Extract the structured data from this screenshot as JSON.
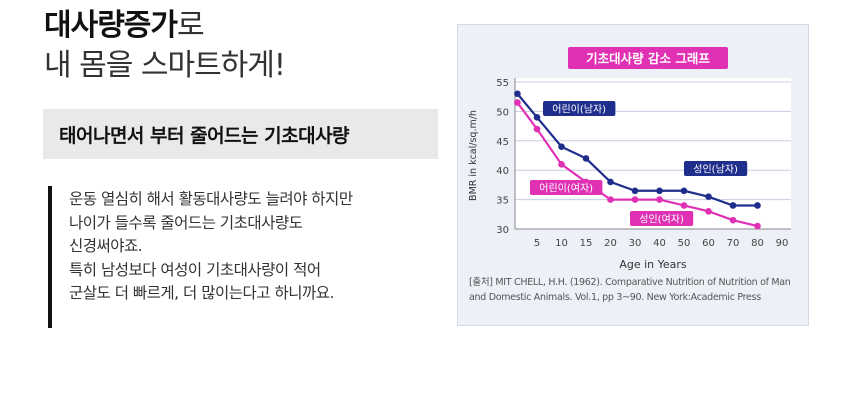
{
  "headline": {
    "part_bold": "대사량증가",
    "part_light": "로",
    "line2": "내 몸을 스마트하게!"
  },
  "subtitle": "태어나면서 부터 줄어드는 기초대사량",
  "paragraph": [
    "운동 열심히 해서 활동대사량도 늘려야 하지만",
    "나이가 들수록 줄어드는 기초대사량도",
    "신경써야죠.",
    "특히 남성보다 여성이 기초대사량이 적어",
    "군살도 더 빠르게, 더 많이는다고 하니까요."
  ],
  "colors": {
    "male": "#1f2e8c",
    "female": "#e030b4",
    "title_bg": "#e030b4",
    "chart_bg": "#eef0f8"
  },
  "chart_data": {
    "type": "line",
    "title": "기초대사량 감소 그래프",
    "xlabel": "Age in Years",
    "ylabel": "BMR in kcal/sq.m/h",
    "x_ticks": [
      5,
      10,
      15,
      20,
      30,
      40,
      50,
      60,
      70,
      80,
      90
    ],
    "y_ticks": [
      30,
      35,
      40,
      45,
      50,
      55
    ],
    "ylim": [
      30,
      55
    ],
    "series": [
      {
        "group": "male",
        "labels": [
          "어린이(남자)",
          "성인(남자)"
        ],
        "x": [
          1,
          5,
          10,
          15,
          20,
          30,
          40,
          50,
          60,
          70,
          80
        ],
        "values": [
          53,
          49,
          44,
          42,
          38,
          36.5,
          36.5,
          36.5,
          35.5,
          34,
          34
        ]
      },
      {
        "group": "female",
        "labels": [
          "어린이(여자)",
          "성인(여자)"
        ],
        "x": [
          1,
          5,
          10,
          15,
          20,
          30,
          40,
          50,
          60,
          70,
          80
        ],
        "values": [
          51.5,
          47,
          41,
          38,
          35,
          35,
          35,
          34,
          33,
          31.5,
          30.5
        ]
      }
    ],
    "source": "[출처] MIT CHELL, H.H. (1962). Comparative Nutrition of Nutrition of Man and Domestic Animals. Vol.1, pp 3~90. New York:Academic Press"
  }
}
